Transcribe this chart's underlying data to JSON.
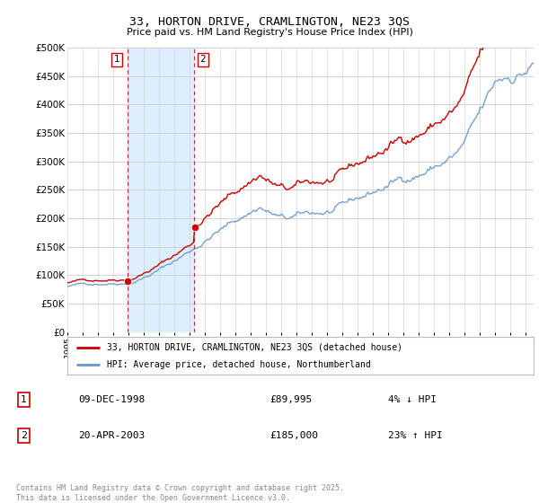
{
  "title": "33, HORTON DRIVE, CRAMLINGTON, NE23 3QS",
  "subtitle": "Price paid vs. HM Land Registry's House Price Index (HPI)",
  "red_line_label": "33, HORTON DRIVE, CRAMLINGTON, NE23 3QS (detached house)",
  "blue_line_label": "HPI: Average price, detached house, Northumberland",
  "transaction1": {
    "label": "1",
    "date": "09-DEC-1998",
    "price": "£89,995",
    "hpi": "4% ↓ HPI"
  },
  "transaction2": {
    "label": "2",
    "date": "20-APR-2003",
    "price": "£185,000",
    "hpi": "23% ↑ HPI"
  },
  "footer": "Contains HM Land Registry data © Crown copyright and database right 2025.\nThis data is licensed under the Open Government Licence v3.0.",
  "ylim": [
    0,
    500000
  ],
  "yticks": [
    0,
    50000,
    100000,
    150000,
    200000,
    250000,
    300000,
    350000,
    400000,
    450000,
    500000
  ],
  "ytick_labels": [
    "£0",
    "£50K",
    "£100K",
    "£150K",
    "£200K",
    "£250K",
    "£300K",
    "£350K",
    "£400K",
    "£450K",
    "£500K"
  ],
  "bg_color": "#ffffff",
  "plot_bg": "#ffffff",
  "grid_color": "#cccccc",
  "red_color": "#cc0000",
  "blue_color": "#6699cc",
  "shaded_color": "#ddeeff",
  "vline1_x": 1998.92,
  "vline2_x": 2003.3,
  "xmin": 1995.0,
  "xmax": 2025.5,
  "sale1_price": 89995,
  "sale1_year": 1998.92,
  "sale2_price": 185000,
  "sale2_year": 2003.3,
  "hpi_scale_factor_after_sale2": 1.23
}
